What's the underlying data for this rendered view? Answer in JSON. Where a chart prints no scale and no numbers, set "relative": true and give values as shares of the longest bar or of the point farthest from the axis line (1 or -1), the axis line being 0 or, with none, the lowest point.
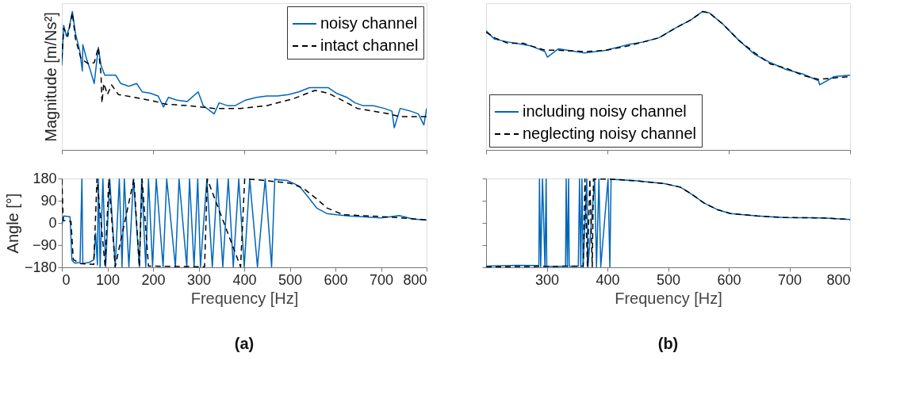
{
  "chart_data": [
    {
      "type": "line",
      "ylabel": "Magnitude [m/Ns²]",
      "relative": true,
      "xlim": [
        0,
        800
      ],
      "xticks": [
        0,
        200,
        400,
        600,
        800
      ],
      "tick_labels": false,
      "legend": "top right",
      "marker": "none",
      "series": [
        {
          "name": "noisy channel",
          "color": "#0066bb",
          "line_style": "solid",
          "x": [
            0,
            4,
            10,
            16,
            23,
            30,
            39,
            45,
            46,
            54,
            62,
            71,
            80,
            86,
            94,
            106,
            118,
            129,
            147,
            164,
            176,
            194,
            211,
            223,
            234,
            252,
            275,
            299,
            310,
            334,
            345,
            363,
            380,
            403,
            427,
            450,
            473,
            497,
            520,
            543,
            567,
            584,
            602,
            625,
            643,
            660,
            683,
            707,
            724,
            729,
            742,
            765,
            782,
            794,
            800
          ],
          "values": [
            0.61,
            0.9,
            0.82,
            0.88,
            1.0,
            0.84,
            0.72,
            0.57,
            0.76,
            0.66,
            0.58,
            0.48,
            0.74,
            0.61,
            0.54,
            0.54,
            0.54,
            0.48,
            0.46,
            0.48,
            0.42,
            0.41,
            0.39,
            0.31,
            0.38,
            0.36,
            0.35,
            0.42,
            0.32,
            0.26,
            0.34,
            0.32,
            0.32,
            0.36,
            0.38,
            0.39,
            0.39,
            0.4,
            0.42,
            0.45,
            0.45,
            0.45,
            0.41,
            0.38,
            0.34,
            0.32,
            0.32,
            0.3,
            0.28,
            0.16,
            0.3,
            0.28,
            0.26,
            0.18,
            0.3
          ]
        },
        {
          "name": "intact channel",
          "color": "#000000",
          "line_style": "dashed",
          "x": [
            0,
            4,
            13,
            23,
            30,
            42,
            59,
            71,
            80,
            86,
            88,
            92,
            100,
            109,
            124,
            159,
            205,
            229,
            275,
            333,
            392,
            450,
            508,
            555,
            584,
            614,
            648,
            683,
            718,
            742,
            800
          ],
          "values": [
            0.66,
            0.88,
            0.82,
            0.99,
            0.8,
            0.66,
            0.62,
            0.63,
            0.74,
            0.54,
            0.34,
            0.48,
            0.4,
            0.47,
            0.4,
            0.38,
            0.35,
            0.33,
            0.32,
            0.3,
            0.3,
            0.32,
            0.37,
            0.43,
            0.41,
            0.36,
            0.3,
            0.28,
            0.26,
            0.24,
            0.24
          ]
        }
      ]
    },
    {
      "type": "line",
      "xlabel": "Frequency [Hz]",
      "ylabel": "Angle [°]",
      "xlim": [
        0,
        800
      ],
      "xticks": [
        0,
        100,
        200,
        300,
        400,
        500,
        600,
        700,
        800
      ],
      "ylim": [
        -180,
        180
      ],
      "yticks": [
        -180,
        -90,
        0,
        90,
        180
      ],
      "marker": "none",
      "annotations": [
        "(a)"
      ],
      "series": [
        {
          "color": "#0066bb",
          "line_style": "solid",
          "x": [
            0,
            4,
            18,
            22,
            26,
            30,
            40,
            44,
            46,
            60,
            70,
            74,
            78,
            80,
            84,
            90,
            96,
            105,
            117,
            126,
            132,
            137,
            147,
            157,
            170,
            175,
            184,
            190,
            199,
            207,
            222,
            230,
            249,
            257,
            274,
            280,
            290,
            298,
            304,
            318,
            330,
            341,
            353,
            365,
            376,
            388,
            400,
            412,
            429,
            446,
            460,
            467,
            470,
            494,
            520,
            538,
            559,
            581,
            603,
            630,
            660,
            700,
            740,
            770,
            800
          ],
          "values": [
            -10,
            28,
            25,
            -150,
            -160,
            -163,
            -160,
            178,
            -165,
            -160,
            -150,
            -42,
            -170,
            178,
            -178,
            178,
            -178,
            178,
            -178,
            178,
            -178,
            178,
            -178,
            178,
            -178,
            178,
            -178,
            178,
            -178,
            178,
            -178,
            178,
            -178,
            178,
            -178,
            178,
            -178,
            178,
            -178,
            178,
            -178,
            178,
            -178,
            178,
            -178,
            178,
            -178,
            178,
            -178,
            178,
            -178,
            178,
            175,
            172,
            150,
            110,
            60,
            38,
            33,
            28,
            25,
            20,
            30,
            15,
            12
          ]
        },
        {
          "color": "#000000",
          "line_style": "dashed",
          "x": [
            0,
            3,
            20,
            25,
            40,
            70,
            77,
            95,
            103,
            117,
            158,
            170,
            176,
            190,
            313,
            319,
            392,
            401,
            420,
            450,
            500,
            530,
            559,
            582,
            617,
            676,
            734,
            800
          ],
          "values": [
            178,
            10,
            6,
            -148,
            -165,
            -168,
            178,
            -178,
            178,
            -178,
            178,
            -178,
            178,
            -175,
            -178,
            178,
            -178,
            178,
            176,
            171,
            161,
            140,
            97,
            60,
            33,
            28,
            22,
            12
          ]
        }
      ]
    },
    {
      "type": "line",
      "relative": true,
      "xlim": [
        200,
        800
      ],
      "xticks": [
        200,
        400,
        600,
        800
      ],
      "tick_labels": false,
      "legend": "bottom left",
      "marker": "none",
      "series": [
        {
          "name": "including noisy channel",
          "color": "#0066bb",
          "line_style": "solid",
          "x": [
            200,
            214,
            236,
            262,
            275,
            297,
            301,
            319,
            362,
            398,
            433,
            459,
            485,
            512,
            538,
            557,
            568,
            590,
            617,
            643,
            669,
            695,
            721,
            748,
            750,
            774,
            800
          ],
          "values": [
            0.86,
            0.8,
            0.78,
            0.76,
            0.75,
            0.71,
            0.67,
            0.73,
            0.7,
            0.72,
            0.76,
            0.78,
            0.81,
            0.88,
            0.94,
            1.0,
            0.99,
            0.91,
            0.79,
            0.69,
            0.63,
            0.58,
            0.55,
            0.5,
            0.47,
            0.53,
            0.54
          ]
        },
        {
          "name": "neglecting noisy channel",
          "color": "#000000",
          "line_style": "dashed",
          "x": [
            200,
            214,
            236,
            262,
            275,
            297,
            319,
            362,
            398,
            433,
            459,
            485,
            512,
            538,
            557,
            568,
            590,
            617,
            643,
            669,
            695,
            721,
            748,
            774,
            800
          ],
          "values": [
            0.85,
            0.81,
            0.77,
            0.77,
            0.75,
            0.72,
            0.72,
            0.71,
            0.72,
            0.75,
            0.78,
            0.81,
            0.88,
            0.94,
            1.0,
            0.99,
            0.91,
            0.79,
            0.7,
            0.62,
            0.59,
            0.54,
            0.51,
            0.52,
            0.53
          ]
        }
      ]
    },
    {
      "type": "line",
      "xlabel": "Frequency [Hz]",
      "xlim": [
        200,
        800
      ],
      "xticks": [
        300,
        400,
        500,
        600,
        700,
        800
      ],
      "ylim": [
        -180,
        180
      ],
      "yticks": [
        -180,
        -90,
        0,
        90,
        180
      ],
      "tick_labels": "x",
      "marker": "none",
      "annotations": [
        "(b)"
      ],
      "series": [
        {
          "color": "#0066bb",
          "line_style": "solid",
          "x": [
            200,
            250,
            287,
            288,
            290,
            293,
            297,
            299,
            300,
            331,
            332,
            334,
            336,
            337,
            352,
            354,
            356,
            358,
            360,
            366,
            368,
            379,
            382,
            386,
            389,
            401,
            404,
            406,
            450,
            494,
            520,
            538,
            559,
            581,
            603,
            647,
            691,
            756,
            800
          ],
          "values": [
            -175,
            -172,
            -173,
            178,
            -178,
            178,
            -178,
            178,
            -176,
            -176,
            178,
            -178,
            178,
            -176,
            -176,
            178,
            -178,
            178,
            -178,
            178,
            -178,
            178,
            -178,
            178,
            -178,
            178,
            -178,
            177,
            170,
            159,
            145,
            118,
            81,
            54,
            38,
            28,
            22,
            20,
            14
          ]
        },
        {
          "color": "#000000",
          "line_style": "dashed",
          "x": [
            200,
            300,
            360,
            363,
            367,
            371,
            375,
            377,
            406,
            450,
            494,
            520,
            538,
            559,
            581,
            603,
            647,
            691,
            756,
            800
          ],
          "values": [
            -178,
            -176,
            -175,
            178,
            -178,
            178,
            -178,
            178,
            177,
            170,
            159,
            145,
            118,
            81,
            54,
            38,
            28,
            22,
            20,
            14
          ]
        }
      ]
    }
  ]
}
